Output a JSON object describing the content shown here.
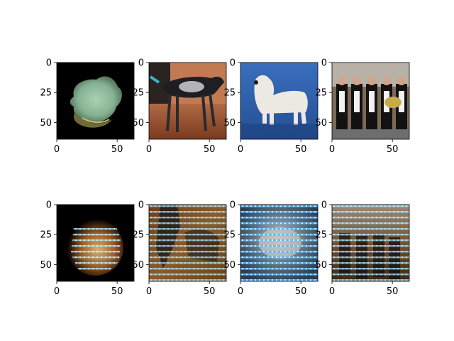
{
  "figure": {
    "background": "#ffffff"
  },
  "chart_data": [
    {
      "type": "image",
      "row": 0,
      "col": 0,
      "subject": "conch seashell on black background",
      "xlim": [
        0,
        64
      ],
      "ylim": [
        64,
        0
      ],
      "xticks": [
        0,
        50
      ],
      "yticks": [
        0,
        25,
        50
      ],
      "xtick_labels": [
        "0",
        "50"
      ],
      "ytick_labels": [
        "0",
        "25",
        "50"
      ],
      "colors": {
        "background": "#000000",
        "main": "#8fb79a",
        "accent": "#6f6a3a"
      }
    },
    {
      "type": "image",
      "row": 0,
      "col": 1,
      "subject": "spotted dog on wooden floor",
      "xlim": [
        0,
        64
      ],
      "ylim": [
        64,
        0
      ],
      "xticks": [
        0,
        50
      ],
      "yticks": [
        0,
        25,
        50
      ],
      "xtick_labels": [
        "0",
        "50"
      ],
      "ytick_labels": [
        "0",
        "25",
        "50"
      ],
      "colors": {
        "background": "#9a5a3a",
        "main": "#1f1f22",
        "accent": "#d8d8d8"
      }
    },
    {
      "type": "image",
      "row": 0,
      "col": 2,
      "subject": "white terrier on blue background",
      "xlim": [
        0,
        64
      ],
      "ylim": [
        64,
        0
      ],
      "xticks": [
        0,
        50
      ],
      "yticks": [
        0,
        25,
        50
      ],
      "xtick_labels": [
        "0",
        "50"
      ],
      "ytick_labels": [
        "0",
        "25",
        "50"
      ],
      "colors": {
        "background": "#2f5fa6",
        "main": "#ece9e2",
        "accent": "#1b3d7a"
      }
    },
    {
      "type": "image",
      "row": 0,
      "col": 3,
      "subject": "marching band musicians",
      "xlim": [
        0,
        64
      ],
      "ylim": [
        64,
        0
      ],
      "xticks": [
        0,
        50
      ],
      "yticks": [
        0,
        25,
        50
      ],
      "xtick_labels": [
        "0",
        "50"
      ],
      "ytick_labels": [
        "0",
        "25",
        "50"
      ],
      "colors": {
        "background": "#7c6a55",
        "main": "#121212",
        "accent": "#f2f2f2"
      }
    },
    {
      "type": "image",
      "row": 1,
      "col": 0,
      "subject": "reconstruction of seashell",
      "xlim": [
        0,
        64
      ],
      "ylim": [
        64,
        0
      ],
      "xticks": [
        0,
        50
      ],
      "yticks": [
        0,
        25,
        50
      ],
      "xtick_labels": [
        "0",
        "50"
      ],
      "ytick_labels": [
        "0",
        "25",
        "50"
      ],
      "colors": {
        "background": "#000000",
        "main": "#b07030",
        "accent": "#8fe0ff"
      }
    },
    {
      "type": "image",
      "row": 1,
      "col": 1,
      "subject": "reconstruction of dog",
      "xlim": [
        0,
        64
      ],
      "ylim": [
        64,
        0
      ],
      "xticks": [
        0,
        50
      ],
      "yticks": [
        0,
        25,
        50
      ],
      "xtick_labels": [
        "0",
        "50"
      ],
      "ytick_labels": [
        "0",
        "25",
        "50"
      ],
      "colors": {
        "background": "#8a5a22",
        "main": "#1a1a1a",
        "accent": "#7fd8ff"
      }
    },
    {
      "type": "image",
      "row": 1,
      "col": 2,
      "subject": "reconstruction of terrier",
      "xlim": [
        0,
        64
      ],
      "ylim": [
        64,
        0
      ],
      "xticks": [
        0,
        50
      ],
      "yticks": [
        0,
        25,
        50
      ],
      "xtick_labels": [
        "0",
        "50"
      ],
      "ytick_labels": [
        "0",
        "25",
        "50"
      ],
      "colors": {
        "background": "#2d4a68",
        "main": "#c8c8c8",
        "accent": "#58c0ff"
      }
    },
    {
      "type": "image",
      "row": 1,
      "col": 3,
      "subject": "reconstruction of marching band",
      "xlim": [
        0,
        64
      ],
      "ylim": [
        64,
        0
      ],
      "xticks": [
        0,
        50
      ],
      "yticks": [
        0,
        25,
        50
      ],
      "xtick_labels": [
        "0",
        "50"
      ],
      "ytick_labels": [
        "0",
        "25",
        "50"
      ],
      "colors": {
        "background": "#6a4a28",
        "main": "#121212",
        "accent": "#9ee4ff"
      }
    }
  ]
}
